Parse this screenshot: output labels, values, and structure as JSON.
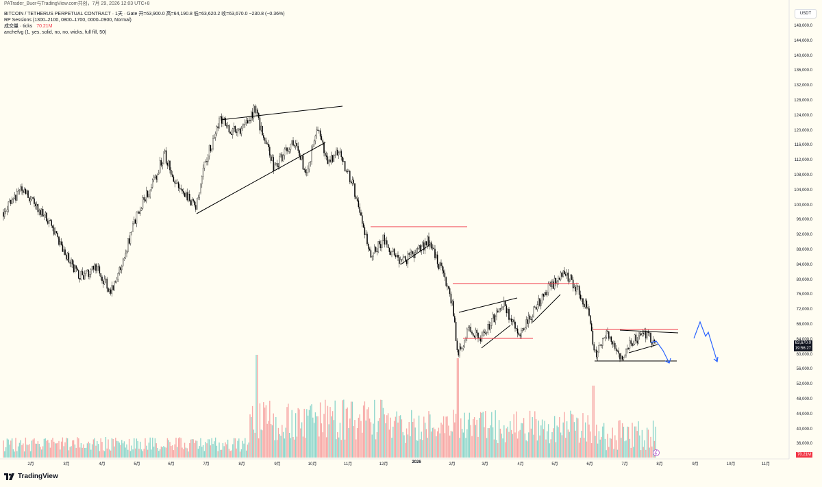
{
  "watermark": "PATrader_Buer与TradingView.com共创，7月 29, 2026 12:03 UTC+8",
  "header": {
    "symbol_line": "BITCOIN / TETHERUS PERPETUAL CONTRACT · 1天 · Gate",
    "ohlc_line": "开=63,900.0  高=64,190.8  低=63,620.2  收=63,670.0  −230.8 (−0.36%)",
    "session_indicator": "RP Sessions (1300–2100, 0800–1700, 0000–0900, Normal)",
    "volume_label": "成交量 · ticks",
    "volume_value": "70.21M",
    "fvg_indicator": "anchefvg (1, yes, solid, no, no, wicks, full fill, 50)"
  },
  "currency": "USDT",
  "price_axis": [
    "148,000.0",
    "144,000.0",
    "140,000.0",
    "136,000.0",
    "132,000.0",
    "128,000.0",
    "124,000.0",
    "120,000.0",
    "116,000.0",
    "112,000.0",
    "108,000.0",
    "104,000.0",
    "100,000.0",
    "96,000.0",
    "92,000.0",
    "88,000.0",
    "84,000.0",
    "80,000.0",
    "76,000.0",
    "72,000.0",
    "68,000.0",
    "64,000.0",
    "60,000.0",
    "56,000.0",
    "52,000.0",
    "48,000.0",
    "44,000.0",
    "40,000.0",
    "36,000.0"
  ],
  "time_axis": [
    "2月",
    "3月",
    "4月",
    "5月",
    "6月",
    "7月",
    "8月",
    "9月",
    "10月",
    "11月",
    "12月",
    "2026",
    "2月",
    "3月",
    "4月",
    "5月",
    "6月",
    "7月",
    "8月",
    "9月",
    "10月",
    "11月"
  ],
  "last_price": "63,670.0",
  "countdown": "19:56:27",
  "volume_badge": "70.21M",
  "brand": "TradingView",
  "colors": {
    "background": "#fffdf2",
    "candle": "#000000",
    "trendline": "#000000",
    "resistance": "#f23645",
    "projection": "#2962ff",
    "volume_up": "#8fd6cc",
    "volume_down": "#f7a9a7",
    "volume_badge": "#f23645"
  },
  "chart_data": {
    "type": "candlestick",
    "price_range": [
      35000,
      150000
    ],
    "key_prices": [
      {
        "date": "2025-01",
        "price": 104000
      },
      {
        "date": "2025-04",
        "price": 76000
      },
      {
        "date": "2025-05",
        "price": 110000
      },
      {
        "date": "2025-07",
        "price": 120000
      },
      {
        "date": "2025-08",
        "price": 124000
      },
      {
        "date": "2025-10",
        "price": 126000
      },
      {
        "date": "2025-11",
        "price": 90000
      },
      {
        "date": "2026-01",
        "price": 97000
      },
      {
        "date": "2026-02",
        "price": 62000
      },
      {
        "date": "2026-05",
        "price": 82000
      },
      {
        "date": "2026-06",
        "price": 60000
      },
      {
        "date": "2026-07",
        "price": 63670
      }
    ],
    "horizontal_levels": [
      94500,
      79500,
      68500,
      66000,
      59000
    ],
    "projection_path": [
      67000,
      69500,
      66500,
      68800,
      59000
    ],
    "last_close": 63670
  }
}
